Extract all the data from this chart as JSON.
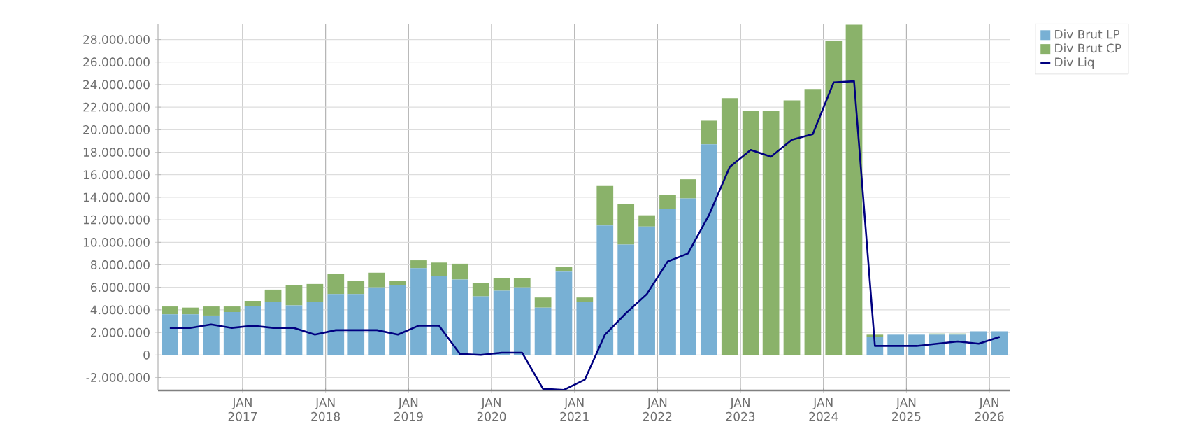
{
  "chart_data": {
    "type": "bar",
    "stacked": true,
    "x": [
      "2016-02-15",
      "2016-05-15",
      "2016-08-15",
      "2016-11-15",
      "2017-02-15",
      "2017-05-15",
      "2017-08-15",
      "2017-11-15",
      "2018-02-15",
      "2018-05-15",
      "2018-08-15",
      "2018-11-15",
      "2019-02-15",
      "2019-05-15",
      "2019-08-15",
      "2019-11-15",
      "2020-02-15",
      "2020-05-15",
      "2020-08-15",
      "2020-11-15",
      "2021-02-15",
      "2021-05-15",
      "2021-08-15",
      "2021-11-15",
      "2022-02-15",
      "2022-05-15",
      "2022-08-15",
      "2022-11-15",
      "2023-02-15",
      "2023-05-15",
      "2023-08-15",
      "2023-11-15",
      "2024-02-15",
      "2024-05-15",
      "2024-08-15",
      "2024-11-15",
      "2025-02-15",
      "2025-05-15",
      "2025-08-15",
      "2025-11-15",
      "2026-02-15"
    ],
    "series": [
      {
        "name": "Div Brut LP",
        "color": "#78b0d4",
        "values": [
          3600000,
          3600000,
          3500000,
          3800000,
          4300000,
          4700000,
          4400000,
          4700000,
          5400000,
          5400000,
          6000000,
          6200000,
          7700000,
          7000000,
          6700000,
          5200000,
          5700000,
          6000000,
          4200000,
          7400000,
          4700000,
          11500000,
          9800000,
          11400000,
          13000000,
          13900000,
          18700000,
          0,
          0,
          0,
          0,
          0,
          0,
          0,
          1600000,
          1800000,
          1800000,
          1800000,
          1800000,
          2100000,
          2100000
        ]
      },
      {
        "name": "Div Brut CP",
        "color": "#8ab26a",
        "values": [
          700000,
          600000,
          800000,
          500000,
          500000,
          1100000,
          1800000,
          1600000,
          1800000,
          1200000,
          1300000,
          400000,
          700000,
          1200000,
          1400000,
          1200000,
          1100000,
          800000,
          900000,
          400000,
          400000,
          3500000,
          3600000,
          1000000,
          1200000,
          1700000,
          2100000,
          22800000,
          21700000,
          21700000,
          22600000,
          23600000,
          27900000,
          29300000,
          200000,
          0,
          0,
          100000,
          100000,
          0,
          0
        ]
      },
      {
        "name": "Div Liq",
        "type": "line",
        "color": "#000080",
        "values": [
          2400000,
          2400000,
          2700000,
          2400000,
          2600000,
          2400000,
          2400000,
          1800000,
          2200000,
          2200000,
          2200000,
          1800000,
          2600000,
          2600000,
          100000,
          0,
          200000,
          200000,
          -3000000,
          -3100000,
          -2200000,
          1800000,
          3700000,
          5400000,
          8300000,
          9000000,
          12400000,
          16700000,
          18200000,
          17600000,
          19100000,
          19600000,
          24200000,
          24300000,
          800000,
          800000,
          800000,
          1000000,
          1200000,
          1000000,
          1600000
        ]
      }
    ],
    "xlim": [
      "2015-12-25",
      "2026-03-31"
    ],
    "xticks": [
      {
        "value": "2017-01-01",
        "label": "JAN 2017"
      },
      {
        "value": "2018-01-01",
        "label": "JAN 2018"
      },
      {
        "value": "2019-01-01",
        "label": "JAN 2019"
      },
      {
        "value": "2020-01-01",
        "label": "JAN 2020"
      },
      {
        "value": "2021-01-01",
        "label": "JAN 2021"
      },
      {
        "value": "2022-01-01",
        "label": "JAN 2022"
      },
      {
        "value": "2023-01-01",
        "label": "JAN 2023"
      },
      {
        "value": "2024-01-01",
        "label": "JAN 2024"
      },
      {
        "value": "2025-01-01",
        "label": "JAN 2025"
      },
      {
        "value": "2026-01-01",
        "label": "JAN 2026"
      }
    ],
    "ylim": [
      -3150000,
      29400000
    ],
    "yticks": [
      {
        "value": -2000000,
        "label": "-2.000.000"
      },
      0,
      {
        "value": 2000000,
        "label": "2.000.000"
      },
      {
        "value": 4000000,
        "label": "4.000.000"
      },
      {
        "value": 6000000,
        "label": "6.000.000"
      },
      {
        "value": 8000000,
        "label": "8.000.000"
      },
      {
        "value": 10000000,
        "label": "10.000.000"
      },
      {
        "value": 12000000,
        "label": "12.000.000"
      },
      {
        "value": 14000000,
        "label": "14.000.000"
      },
      {
        "value": 16000000,
        "label": "16.000.000"
      },
      {
        "value": 18000000,
        "label": "18.000.000"
      },
      {
        "value": 20000000,
        "label": "20.000.000"
      },
      {
        "value": 22000000,
        "label": "22.000.000"
      },
      {
        "value": 24000000,
        "label": "24.000.000"
      },
      {
        "value": 26000000,
        "label": "26.000.000"
      },
      {
        "value": 28000000,
        "label": "28.000.000"
      }
    ],
    "grid": true,
    "legend": "top right"
  }
}
